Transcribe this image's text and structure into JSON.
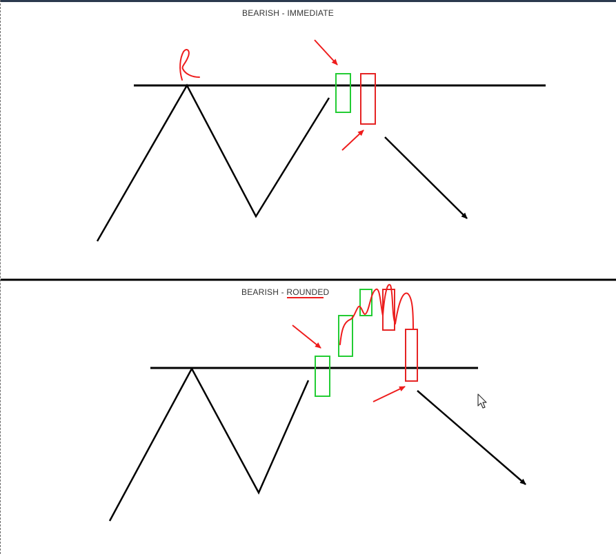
{
  "panels": [
    {
      "title": "BEARISH - IMMEDIATE",
      "annotation_letter": "R"
    },
    {
      "title_prefix": "BEARISH - ",
      "title_underlined": "ROUNDED"
    }
  ],
  "colors": {
    "line": "#000000",
    "bullish_candle": "#22cc33",
    "bearish_candle": "#e52222",
    "annotation": "#ee1c1c",
    "divider": "#000000"
  },
  "icons": {
    "cursor": "mouse-pointer-icon"
  }
}
